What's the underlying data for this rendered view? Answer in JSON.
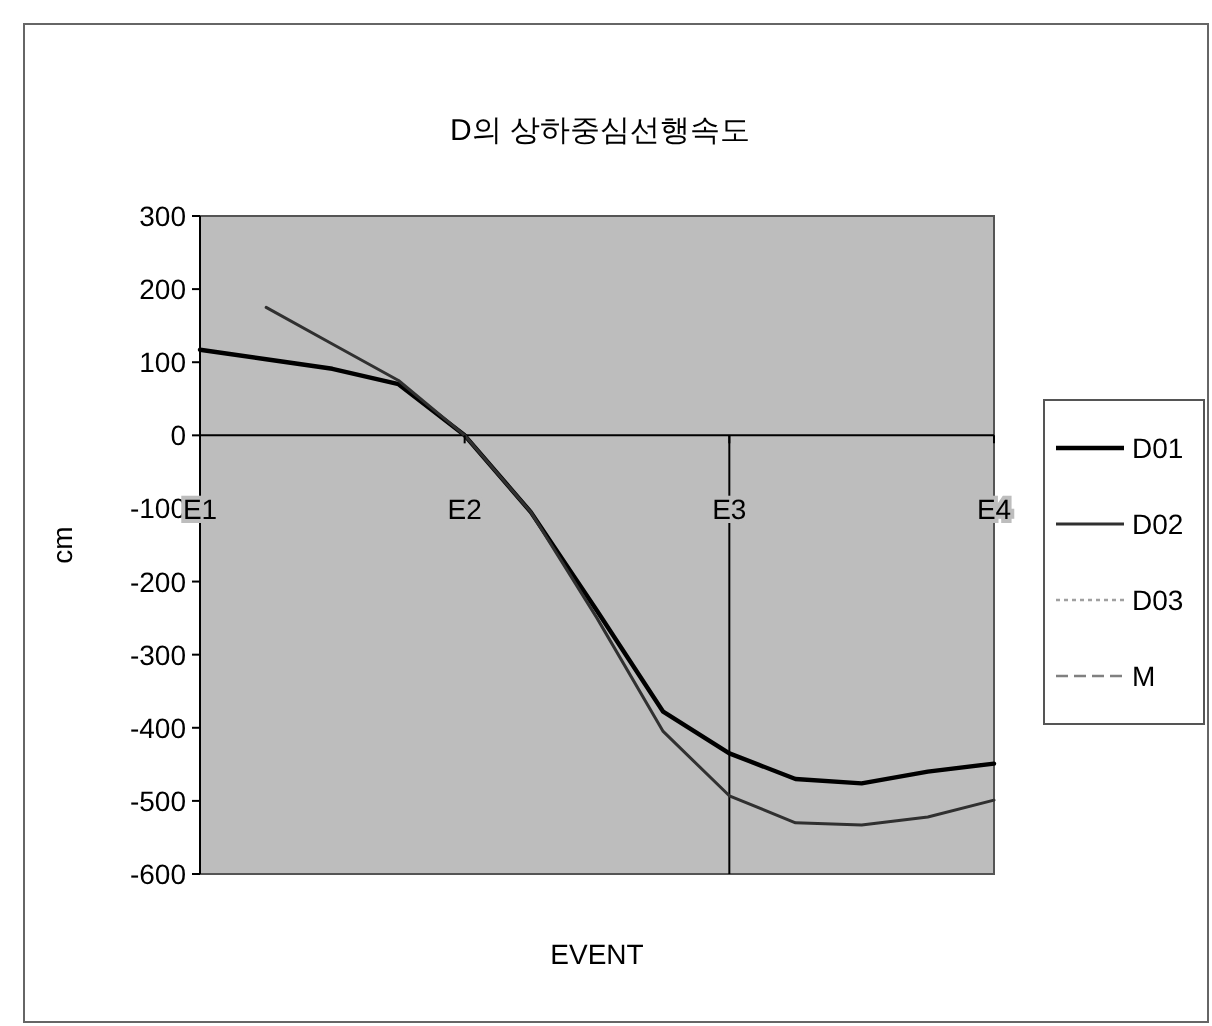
{
  "chart_data": {
    "type": "line",
    "title": "D의 상하중심선행속도",
    "xlabel": "EVENT",
    "ylabel": "cm",
    "categories": [
      "E1",
      null,
      null,
      null,
      "E2",
      null,
      null,
      null,
      "E3",
      null,
      null,
      null,
      "E4"
    ],
    "ylim": [
      -600,
      300
    ],
    "yticks": [
      300,
      200,
      100,
      0,
      -100,
      -200,
      -300,
      -400,
      -500,
      -600
    ],
    "grid": false,
    "legend": "right",
    "ref_lines": [
      {
        "axis": "x",
        "value": "E3",
        "color": "#000000"
      }
    ],
    "series": [
      {
        "name": "D01",
        "color": "#000000",
        "line_style": "solid",
        "values": [
          117,
          104,
          91,
          70,
          0,
          -105,
          -240,
          -378,
          -435,
          -470,
          -476,
          -460,
          -449
        ]
      },
      {
        "name": "D02",
        "color": "#303030",
        "line_style": "solid",
        "values": [
          null,
          175,
          125,
          75,
          0,
          -105,
          -250,
          -405,
          -493,
          -530,
          -533,
          -522,
          -499
        ]
      },
      {
        "name": "D03",
        "color": "#a0a0a0",
        "line_style": "dotted",
        "values": [
          null,
          null,
          null,
          null,
          null,
          null,
          null,
          null,
          null,
          null,
          null,
          null,
          null
        ]
      },
      {
        "name": "M",
        "color": "#808080",
        "line_style": "dashed",
        "values": [
          null,
          null,
          null,
          null,
          null,
          null,
          null,
          null,
          null,
          null,
          null,
          null,
          null
        ]
      }
    ]
  }
}
